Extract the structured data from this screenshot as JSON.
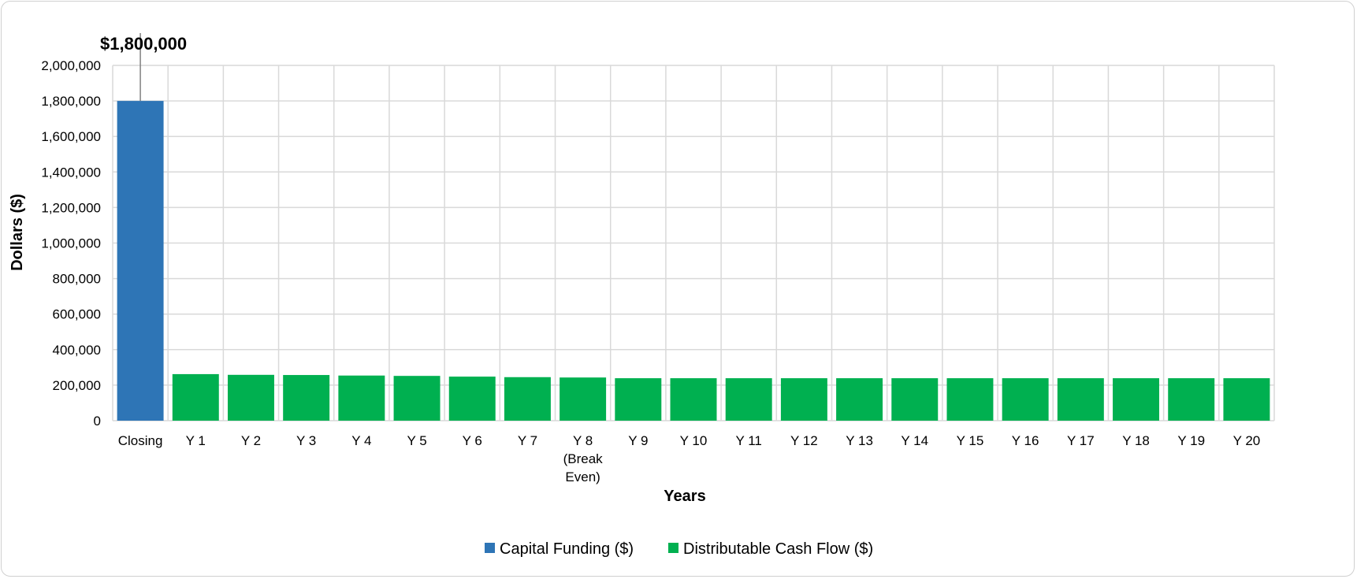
{
  "chart_data": {
    "type": "bar",
    "xlabel": "Years",
    "ylabel": "Dollars ($)",
    "ylim": [
      0,
      2000000
    ],
    "y_ticks": [
      0,
      200000,
      400000,
      600000,
      800000,
      1000000,
      1200000,
      1400000,
      1600000,
      1800000,
      2000000
    ],
    "y_tick_labels": [
      "0",
      "200,000",
      "400,000",
      "600,000",
      "800,000",
      "1,000,000",
      "1,200,000",
      "1,400,000",
      "1,600,000",
      "1,800,000",
      "2,000,000"
    ],
    "grid": true,
    "legend_position": "bottom",
    "categories": [
      [
        "Closing"
      ],
      [
        "Y 1"
      ],
      [
        "Y 2"
      ],
      [
        "Y 3"
      ],
      [
        "Y 4"
      ],
      [
        "Y 5"
      ],
      [
        "Y 6"
      ],
      [
        "Y 7"
      ],
      [
        "Y 8",
        "(Break",
        "Even)"
      ],
      [
        "Y 9"
      ],
      [
        "Y 10"
      ],
      [
        "Y 11"
      ],
      [
        "Y 12"
      ],
      [
        "Y 13"
      ],
      [
        "Y 14"
      ],
      [
        "Y 15"
      ],
      [
        "Y 16"
      ],
      [
        "Y 17"
      ],
      [
        "Y 18"
      ],
      [
        "Y 19"
      ],
      [
        "Y 20"
      ]
    ],
    "series": [
      {
        "name": "Capital Funding ($)",
        "color": "#2E75B6",
        "values": [
          1800000,
          null,
          null,
          null,
          null,
          null,
          null,
          null,
          null,
          null,
          null,
          null,
          null,
          null,
          null,
          null,
          null,
          null,
          null,
          null,
          null
        ],
        "data_label": "$1,800,000"
      },
      {
        "name": "Distributable Cash Flow ($)",
        "color": "#00B050",
        "values": [
          null,
          262000,
          258000,
          257000,
          254000,
          252000,
          248000,
          245000,
          243000,
          239000,
          239000,
          239000,
          239000,
          239000,
          239000,
          239000,
          239000,
          239000,
          239000,
          239000,
          239000
        ]
      }
    ]
  }
}
